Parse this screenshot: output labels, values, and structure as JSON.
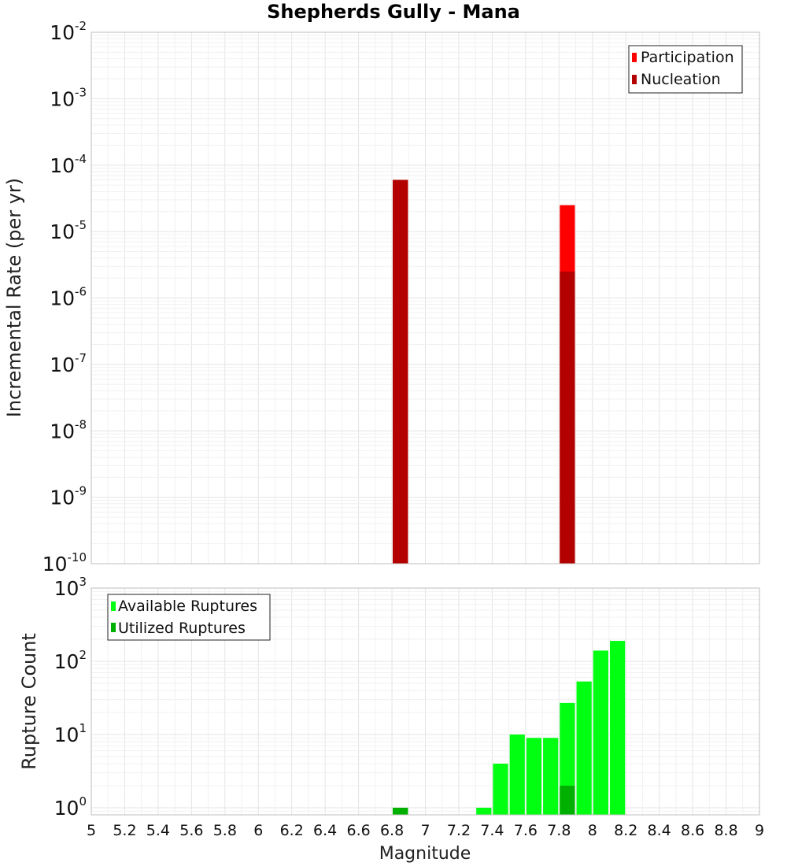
{
  "colors": {
    "participation": "#ff0000",
    "nucleation": "#b30000",
    "available": "#00ff11",
    "utilized": "#00b000"
  },
  "chart_data": [
    {
      "type": "bar",
      "title": "Shepherds Gully - Mana",
      "xlabel": "",
      "ylabel": "Incremental Rate (per yr)",
      "yscale": "log",
      "xlim": [
        5,
        9
      ],
      "ylim": [
        1e-10,
        0.01
      ],
      "ytick_exponents": [
        "-10",
        "-9",
        "-8",
        "-7",
        "-6",
        "-5",
        "-4",
        "-3",
        "-2"
      ],
      "ytick_base": "10",
      "legend": {
        "position": "top-right",
        "entries": [
          "Participation",
          "Nucleation"
        ]
      },
      "bar_width": 0.1,
      "series": [
        {
          "name": "Participation",
          "color_key": "participation",
          "points": [
            {
              "x": 6.85,
              "y": 6e-05
            },
            {
              "x": 7.85,
              "y": 2.5e-05
            }
          ]
        },
        {
          "name": "Nucleation",
          "color_key": "nucleation",
          "points": [
            {
              "x": 6.85,
              "y": 6e-05
            },
            {
              "x": 7.85,
              "y": 2.5e-06
            }
          ]
        }
      ]
    },
    {
      "type": "bar",
      "title": "",
      "xlabel": "Magnitude",
      "ylabel": "Rupture Count",
      "yscale": "log",
      "xlim": [
        5,
        9
      ],
      "ylim": [
        0.8,
        1000
      ],
      "ytick_exponents": [
        "0",
        "1",
        "2",
        "3"
      ],
      "ytick_base": "10",
      "xticks": [
        "5",
        "5.2",
        "5.4",
        "5.6",
        "5.8",
        "6",
        "6.2",
        "6.4",
        "6.6",
        "6.8",
        "7",
        "7.2",
        "7.4",
        "7.6",
        "7.8",
        "8",
        "8.2",
        "8.4",
        "8.6",
        "8.8",
        "9"
      ],
      "legend": {
        "position": "top-left",
        "entries": [
          "Available Ruptures",
          "Utilized Ruptures"
        ]
      },
      "bar_width": 0.1,
      "series": [
        {
          "name": "Available Ruptures",
          "color_key": "available",
          "points": [
            {
              "x": 6.85,
              "y": 1
            },
            {
              "x": 7.35,
              "y": 1
            },
            {
              "x": 7.45,
              "y": 4
            },
            {
              "x": 7.55,
              "y": 10
            },
            {
              "x": 7.65,
              "y": 9
            },
            {
              "x": 7.75,
              "y": 9
            },
            {
              "x": 7.85,
              "y": 27
            },
            {
              "x": 7.95,
              "y": 53
            },
            {
              "x": 8.05,
              "y": 140
            },
            {
              "x": 8.15,
              "y": 190
            }
          ]
        },
        {
          "name": "Utilized Ruptures",
          "color_key": "utilized",
          "points": [
            {
              "x": 6.85,
              "y": 1
            },
            {
              "x": 7.85,
              "y": 2
            }
          ]
        }
      ]
    }
  ]
}
